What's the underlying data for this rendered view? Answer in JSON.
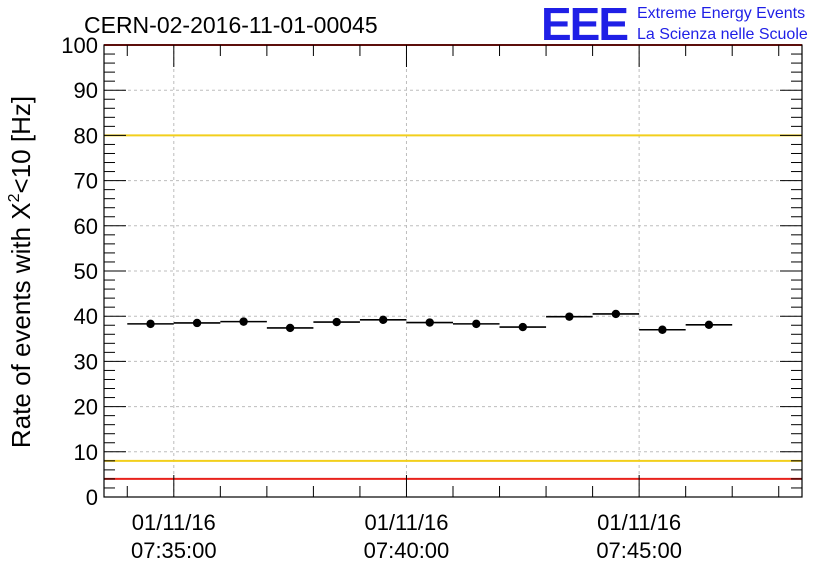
{
  "header": {
    "title": "CERN-02-2016-11-01-00045",
    "logo_mark": "EEE",
    "logo_line1": "Extreme Energy Events",
    "logo_line2": "La Scienza nelle Scuole"
  },
  "colors": {
    "threshold_red": "#e8221c",
    "threshold_yellow": "#f2cf1c",
    "grid": "#bdbdbd",
    "points": "#000000",
    "logo": "#1f1fe6"
  },
  "chart_data": {
    "type": "scatter",
    "title": "CERN-02-2016-11-01-00045",
    "ylabel_main": "Rate of events with X",
    "ylabel_sup": "2",
    "ylabel_tail": "<10 [Hz]",
    "xlabel": "",
    "ylim": [
      0,
      100
    ],
    "y_ticks": [
      0,
      10,
      20,
      30,
      40,
      50,
      60,
      70,
      80,
      90,
      100
    ],
    "xlim": [
      "07:33:30",
      "07:48:30"
    ],
    "x_tick_labels": [
      {
        "date": "01/11/16",
        "time": "07:35:00"
      },
      {
        "date": "01/11/16",
        "time": "07:40:00"
      },
      {
        "date": "01/11/16",
        "time": "07:45:00"
      }
    ],
    "grid": true,
    "error_bar_width_min": 1,
    "points": [
      {
        "x": "07:34:30",
        "y": 38.3
      },
      {
        "x": "07:35:30",
        "y": 38.5
      },
      {
        "x": "07:36:30",
        "y": 38.8
      },
      {
        "x": "07:37:30",
        "y": 37.4
      },
      {
        "x": "07:38:30",
        "y": 38.7
      },
      {
        "x": "07:39:30",
        "y": 39.2
      },
      {
        "x": "07:40:30",
        "y": 38.6
      },
      {
        "x": "07:41:30",
        "y": 38.3
      },
      {
        "x": "07:42:30",
        "y": 37.6
      },
      {
        "x": "07:43:30",
        "y": 39.9
      },
      {
        "x": "07:44:30",
        "y": 40.5
      },
      {
        "x": "07:45:30",
        "y": 37.0
      },
      {
        "x": "07:46:30",
        "y": 38.1
      }
    ],
    "reference_lines": [
      {
        "y": 100,
        "color": "#e8221c"
      },
      {
        "y": 80,
        "color": "#f2cf1c"
      },
      {
        "y": 8,
        "color": "#f2cf1c"
      },
      {
        "y": 4,
        "color": "#e8221c"
      }
    ]
  }
}
